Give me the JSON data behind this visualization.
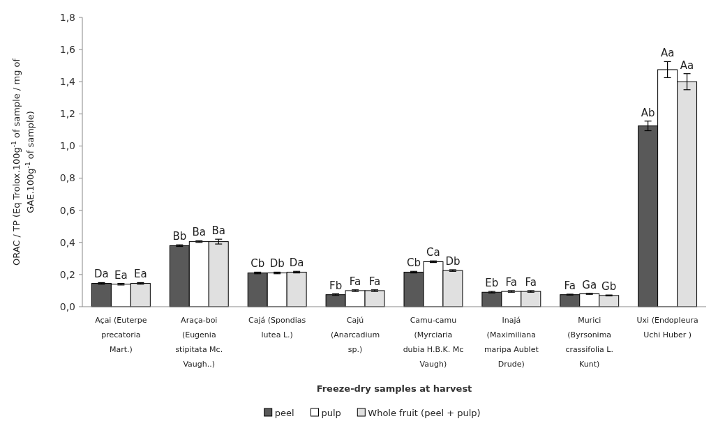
{
  "chart_data": {
    "type": "bar",
    "xlabel": "Freeze-dry samples at harvest",
    "ylabel": "ORAC / TP (Eq Trolox.100g$^{-1}$ of sample / mg of GAE.100g$^{-1}$ of sample)",
    "categories": [
      "Açai (Euterpe precatoria Mart.)",
      "Araça-boi (Eugenia stipitata Mc. Vaugh..)",
      "Cajá (Spondias lutea L.)",
      "Cajú (Anarcadium sp.)",
      "Camu-camu (Myrciaria dubia H.B.K. Mc Vaugh)",
      "Inajá (Maximiliana maripa Aublet Drude)",
      "Murici (Byrsonima crassifolia L. Kunt)",
      "Uxi (Endopleura Uchi Huber )"
    ],
    "series": [
      {
        "name": "peel",
        "color": "#595959",
        "values": [
          0.145,
          0.38,
          0.21,
          0.075,
          0.215,
          0.09,
          0.075,
          1.125
        ],
        "errors": [
          0.005,
          0.005,
          0.005,
          0.005,
          0.005,
          0.005,
          0.003,
          0.03
        ]
      },
      {
        "name": "pulp",
        "color": "#ffffff",
        "values": [
          0.14,
          0.405,
          0.21,
          0.1,
          0.28,
          0.095,
          0.08,
          1.475
        ],
        "errors": [
          0.005,
          0.005,
          0.005,
          0.005,
          0.005,
          0.005,
          0.003,
          0.05
        ]
      },
      {
        "name": "Whole fruit (peel + pulp)",
        "color": "#e0e0e0",
        "values": [
          0.145,
          0.405,
          0.215,
          0.1,
          0.225,
          0.095,
          0.07,
          1.4
        ],
        "errors": [
          0.005,
          0.015,
          0.005,
          0.005,
          0.005,
          0.005,
          0.003,
          0.05
        ]
      }
    ],
    "ylim": [
      0,
      1.8
    ],
    "yticks": [
      {
        "value": 0,
        "label": "0,0"
      },
      {
        "value": 0.2,
        "label": "0,2"
      },
      {
        "value": 0.4,
        "label": "0,4"
      },
      {
        "value": 0.6,
        "label": "0,6"
      },
      {
        "value": 0.8,
        "label": "0,8"
      },
      {
        "value": 1.0,
        "label": "1,0"
      },
      {
        "value": 1.2,
        "label": "1,2"
      },
      {
        "value": 1.4,
        "label": "1,4"
      },
      {
        "value": 1.6,
        "label": "1,6"
      },
      {
        "value": 1.8,
        "label": "1,8"
      }
    ],
    "grid": false,
    "legend": "bottom",
    "annotations": [
      "Da",
      "Ea",
      "Ea",
      "Bb",
      "Ba",
      "Ba",
      "Cb",
      "Db",
      "Da",
      "Fb",
      "Fa",
      "Fa",
      "Cb",
      "Ca",
      "Db",
      "Eb",
      "Fa",
      "Fa",
      "Fa",
      "Ga",
      "Gb",
      "Ab",
      "Aa",
      "Aa"
    ]
  }
}
